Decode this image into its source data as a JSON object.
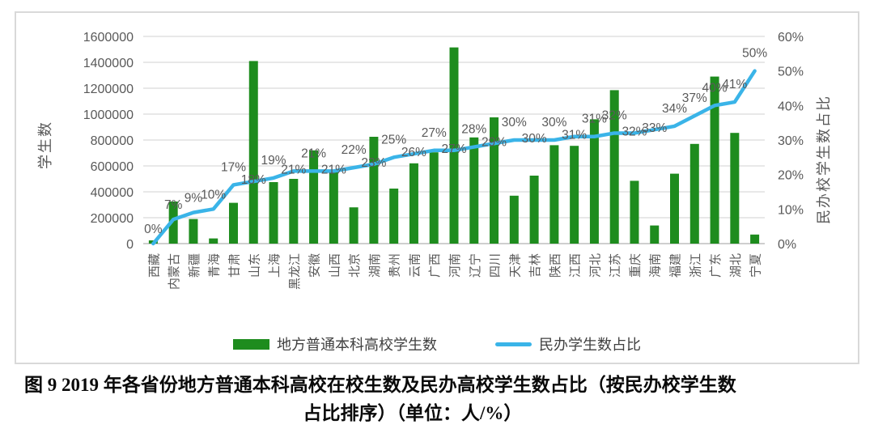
{
  "figure": {
    "caption_line1": "图 9  2019 年各省份地方普通本科高校在校生数及民办高校学生数占比（按民办校学生数",
    "caption_line2": "占比排序）（单位：人/%）"
  },
  "legend": {
    "items": [
      {
        "label": "地方普通本科高校学生数",
        "type": "bar",
        "color": "#1e8c1e"
      },
      {
        "label": "民办学生数占比",
        "type": "line",
        "color": "#3ab4e8"
      }
    ]
  },
  "chart_data": {
    "type": "bar+line combo",
    "categories": [
      "西藏",
      "内蒙古",
      "新疆",
      "青海",
      "甘肃",
      "山东",
      "上海",
      "黑龙江",
      "安徽",
      "山西",
      "北京",
      "湖南",
      "贵州",
      "云南",
      "广西",
      "河南",
      "辽宁",
      "四川",
      "天津",
      "吉林",
      "陕西",
      "江西",
      "河北",
      "江苏",
      "重庆",
      "海南",
      "福建",
      "浙江",
      "广东",
      "湖北",
      "宁夏"
    ],
    "series": [
      {
        "name": "地方普通本科高校学生数",
        "type": "bar",
        "axis": "left",
        "color": "#1e8c1e",
        "values": [
          25000,
          325000,
          190000,
          40000,
          315000,
          1410000,
          475000,
          500000,
          720000,
          555000,
          280000,
          825000,
          425000,
          620000,
          705000,
          1515000,
          820000,
          975000,
          370000,
          525000,
          760000,
          755000,
          960000,
          1185000,
          485000,
          140000,
          540000,
          770000,
          1290000,
          855000,
          70000
        ]
      },
      {
        "name": "民办学生数占比",
        "type": "line",
        "axis": "right",
        "color": "#3ab4e8",
        "values_pct": [
          0,
          7,
          9,
          10,
          17,
          18,
          19,
          21,
          21,
          21,
          22,
          23,
          25,
          26,
          27,
          27,
          28,
          29,
          30,
          30,
          30,
          31,
          31,
          32,
          32,
          33,
          34,
          37,
          40,
          41,
          50
        ],
        "data_labels": [
          "0%",
          "7%",
          "9%",
          "10%",
          "17%",
          "18%",
          "19%",
          "21%",
          "21%",
          "21%",
          "22%",
          "23%",
          "25%",
          "26%",
          "27%",
          "27%",
          "28%",
          "29%",
          "30%",
          "30%",
          "30%",
          "31%",
          "31%",
          "32%",
          "32%",
          "33%",
          "34%",
          "37%",
          "40%",
          "41%",
          "50%"
        ],
        "label_positions": [
          "std",
          "std",
          "std",
          "std",
          "hi",
          "lo",
          "hi",
          "lo",
          "hi",
          "lo",
          "hi",
          "lo",
          "hi",
          "lo",
          "hi",
          "lo",
          "hi",
          "lo",
          "hi",
          "lo",
          "hi",
          "lo",
          "hi",
          "hi",
          "lo",
          "lo",
          "hi",
          "hi",
          "hi",
          "hi",
          "hi"
        ]
      }
    ],
    "left_axis": {
      "title": "学生数",
      "min": 0,
      "max": 1600000,
      "step": 200000,
      "tick_labels": [
        "0",
        "200000",
        "400000",
        "600000",
        "800000",
        "1000000",
        "1200000",
        "1400000",
        "1600000"
      ]
    },
    "right_axis": {
      "title": "民办校学生数占比",
      "min": 0,
      "max": 60,
      "step": 10,
      "tick_labels": [
        "0%",
        "10%",
        "20%",
        "30%",
        "40%",
        "50%",
        "60%"
      ]
    },
    "grid": "horizontal",
    "legend_position": "bottom",
    "colors": {
      "gridline": "#d9d9d9",
      "axis_line": "#bfbfbf",
      "tick_text": "#595959",
      "label_text": "#595959"
    }
  }
}
